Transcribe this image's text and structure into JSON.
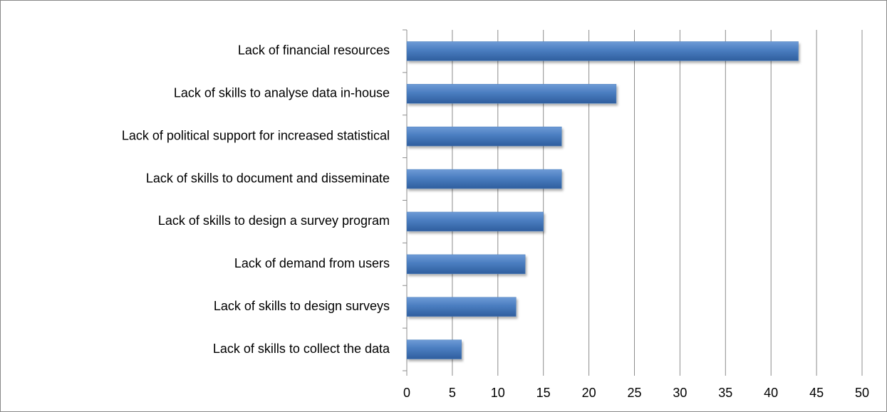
{
  "chart_data": {
    "type": "barh",
    "categories": [
      "Lack of financial resources",
      "Lack of skills to analyse data in-house",
      "Lack of political support for increased statistical",
      "Lack of skills to document and disseminate",
      "Lack of skills to design a survey program",
      "Lack of demand from users",
      "Lack of skills to design surveys",
      "Lack of skills to collect the data"
    ],
    "values": [
      43,
      23,
      17,
      17,
      15,
      13,
      12,
      6
    ],
    "color": "#4f81bd",
    "xlim": [
      0,
      50
    ],
    "xticks": [
      0,
      5,
      10,
      15,
      20,
      25,
      30,
      35,
      40,
      45,
      50
    ],
    "grid": true
  }
}
